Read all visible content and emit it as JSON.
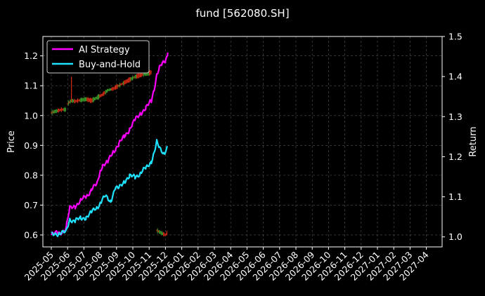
{
  "chart_data": {
    "type": "line",
    "title": "fund [562080.SH]",
    "ylabel_left": "Price",
    "ylabel_right": "Return",
    "ylim_left": [
      0.56,
      1.265
    ],
    "ylim_right": [
      0.975,
      1.5
    ],
    "yticks_left": [
      "0.6",
      "0.7",
      "0.8",
      "0.9",
      "1.0",
      "1.1",
      "1.2"
    ],
    "yticks_right": [
      "1.0",
      "1.1",
      "1.2",
      "1.3",
      "1.4",
      "1.5"
    ],
    "xticks": [
      "2025-05",
      "2025-06",
      "2025-07",
      "2025-08",
      "2025-09",
      "2025-10",
      "2025-11",
      "2025-12",
      "2026-01",
      "2026-02",
      "2026-03",
      "2026-04",
      "2026-05",
      "2026-06",
      "2026-07",
      "2026-08",
      "2026-09",
      "2026-10",
      "2026-11",
      "2026-12",
      "2027-01",
      "2027-02",
      "2027-03",
      "2027-04"
    ],
    "grid": true,
    "legend_position": "top-left",
    "series": [
      {
        "name": "AI Strategy",
        "axis": "right",
        "color": "#ff00ff",
        "x": [
          "2025-05-01",
          "2025-05-15",
          "2025-05-28",
          "2025-06-05",
          "2025-06-15",
          "2025-06-25",
          "2025-07-05",
          "2025-07-15",
          "2025-07-25",
          "2025-08-01",
          "2025-08-05",
          "2025-08-15",
          "2025-08-25",
          "2025-09-05",
          "2025-09-15",
          "2025-09-25",
          "2025-10-05",
          "2025-10-15",
          "2025-10-25",
          "2025-11-05",
          "2025-11-10",
          "2025-11-15",
          "2025-11-20",
          "2025-11-25",
          "2025-12-01",
          "2025-12-05"
        ],
        "y": [
          1.005,
          1.01,
          1.02,
          1.07,
          1.078,
          1.09,
          1.1,
          1.12,
          1.13,
          1.165,
          1.18,
          1.185,
          1.215,
          1.23,
          1.25,
          1.27,
          1.29,
          1.31,
          1.32,
          1.34,
          1.37,
          1.405,
          1.42,
          1.43,
          1.44,
          1.46
        ]
      },
      {
        "name": "Buy-and-Hold",
        "axis": "right",
        "color": "#1ee3ff",
        "x": [
          "2025-05-01",
          "2025-05-15",
          "2025-05-28",
          "2025-06-05",
          "2025-06-15",
          "2025-06-25",
          "2025-07-05",
          "2025-07-15",
          "2025-07-25",
          "2025-08-01",
          "2025-08-10",
          "2025-08-20",
          "2025-08-28",
          "2025-09-05",
          "2025-09-15",
          "2025-09-25",
          "2025-10-05",
          "2025-10-15",
          "2025-10-25",
          "2025-11-05",
          "2025-11-10",
          "2025-11-15",
          "2025-11-20",
          "2025-11-28",
          "2025-12-05"
        ],
        "y": [
          1.005,
          1.01,
          1.01,
          1.045,
          1.04,
          1.045,
          1.05,
          1.06,
          1.075,
          1.085,
          1.1,
          1.09,
          1.12,
          1.12,
          1.14,
          1.15,
          1.15,
          1.16,
          1.17,
          1.19,
          1.21,
          1.235,
          1.22,
          1.21,
          1.225
        ]
      }
    ],
    "price_candles": {
      "axis": "left",
      "up_color": "#3a9a2a",
      "down_color": "#d42a14",
      "segments": [
        {
          "x": [
            "2025-05-01",
            "2025-05-10",
            "2025-05-20",
            "2025-05-28"
          ],
          "y": [
            1.01,
            1.015,
            1.02,
            1.02
          ]
        },
        {
          "x": [
            "2025-06-01",
            "2025-06-08",
            "2025-06-15",
            "2025-06-25",
            "2025-07-05",
            "2025-07-15",
            "2025-07-25",
            "2025-08-05",
            "2025-08-15",
            "2025-08-25",
            "2025-09-05",
            "2025-09-15",
            "2025-09-25",
            "2025-10-05",
            "2025-10-15",
            "2025-10-25",
            "2025-11-05"
          ],
          "y": [
            1.04,
            1.05,
            1.048,
            1.052,
            1.055,
            1.05,
            1.06,
            1.07,
            1.085,
            1.09,
            1.1,
            1.11,
            1.12,
            1.13,
            1.135,
            1.14,
            1.145
          ]
        },
        {
          "x": [
            "2025-11-15",
            "2025-11-20",
            "2025-11-25",
            "2025-12-01",
            "2025-12-05"
          ],
          "y": [
            0.615,
            0.61,
            0.605,
            0.6,
            0.61
          ]
        }
      ],
      "spike": {
        "x": "2025-06-08",
        "y": 1.13
      }
    }
  }
}
